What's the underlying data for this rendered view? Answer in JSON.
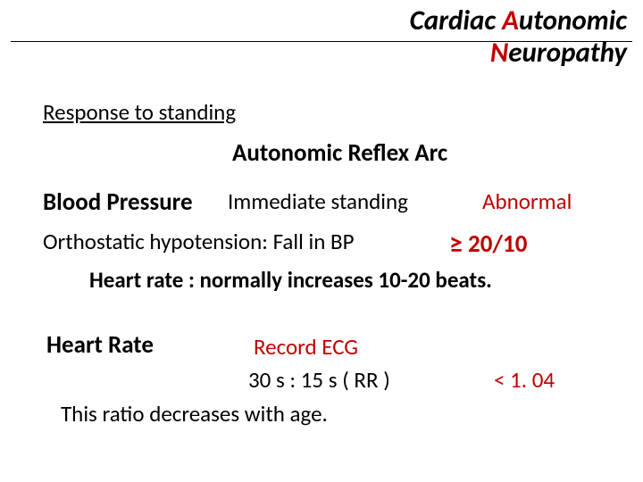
{
  "title": {
    "line1_black": "Cardiac ",
    "line1_red_prefix": "A",
    "line1_black_rest": "utonomic",
    "line2_red_prefix": "N",
    "line2_black_rest": "europathy"
  },
  "subtitle": "Response to standing",
  "section_heading": "Autonomic Reflex Arc",
  "bp": {
    "label": "Blood Pressure",
    "mid": "Immediate standing",
    "right": "Abnormal"
  },
  "ortho": {
    "text": "Orthostatic hypotension:   Fall in BP",
    "symbol": "≥",
    "value": " 20/10"
  },
  "hr_first": "Heart rate : normally increases  10-20 beats.",
  "hr": {
    "label": "Heart Rate",
    "record": "Record ECG"
  },
  "ratio": {
    "text": "30 s : 15 s ( RR )",
    "right": "< 1. 04"
  },
  "age_note": "This ratio decreases with age.",
  "colors": {
    "red": "#c00000",
    "black": "#000000",
    "background": "#ffffff"
  }
}
